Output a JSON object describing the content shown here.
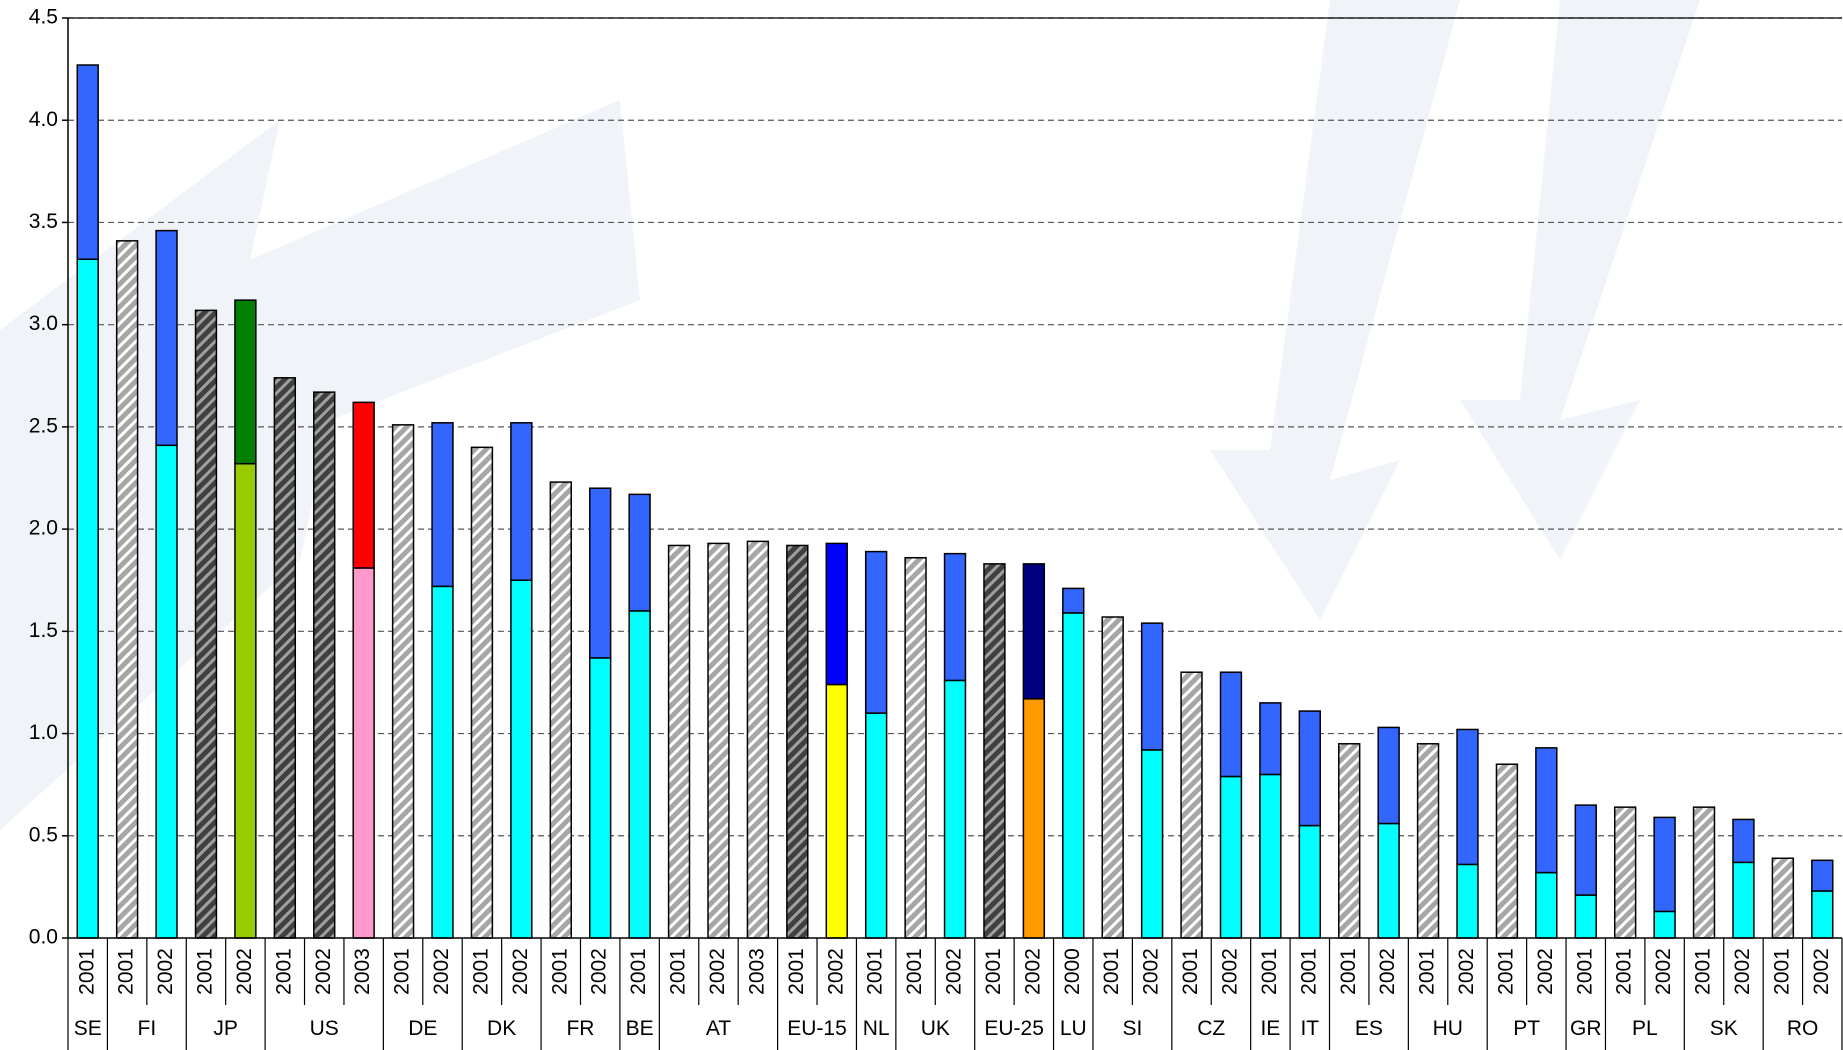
{
  "chart_data": {
    "type": "stacked-bar",
    "ylim": [
      0,
      4.5
    ],
    "yticks": [
      {
        "value": 0,
        "label": "0.0"
      },
      0.5,
      {
        "value": 1,
        "label": "1.0"
      },
      1.5,
      {
        "value": 2,
        "label": "2.0"
      },
      2.5,
      {
        "value": 3,
        "label": "3.0"
      },
      3.5,
      {
        "value": 4,
        "label": "4.0"
      },
      4.5
    ],
    "grid": true,
    "groups": [
      {
        "label": "SE",
        "bars": [
          {
            "year": "2001",
            "segments": [
              {
                "value": 3.32,
                "color": "#00ffff"
              },
              {
                "value": 0.95,
                "color": "#3366ff"
              }
            ]
          }
        ]
      },
      {
        "label": "FI",
        "bars": [
          {
            "year": "2001",
            "segments": [
              {
                "value": 3.41,
                "color": "#a6a6a6",
                "hatch_color": "#ffffff"
              }
            ]
          },
          {
            "year": "2002",
            "segments": [
              {
                "value": 2.41,
                "color": "#00ffff"
              },
              {
                "value": 1.05,
                "color": "#3366ff"
              }
            ]
          }
        ]
      },
      {
        "label": "JP",
        "bars": [
          {
            "year": "2001",
            "segments": [
              {
                "value": 3.07,
                "color": "#404040",
                "hatch_color": "#a0a0a0"
              }
            ]
          },
          {
            "year": "2002",
            "segments": [
              {
                "value": 2.32,
                "color": "#99cc00"
              },
              {
                "value": 0.8,
                "color": "#008000"
              }
            ]
          }
        ]
      },
      {
        "label": "US",
        "bars": [
          {
            "year": "2001",
            "segments": [
              {
                "value": 2.74,
                "color": "#404040",
                "hatch_color": "#a0a0a0"
              }
            ]
          },
          {
            "year": "2002",
            "segments": [
              {
                "value": 2.67,
                "color": "#404040",
                "hatch_color": "#a0a0a0"
              }
            ]
          },
          {
            "year": "2003",
            "segments": [
              {
                "value": 1.81,
                "color": "#ff99cc"
              },
              {
                "value": 0.81,
                "color": "#ff0000"
              }
            ]
          }
        ]
      },
      {
        "label": "DE",
        "bars": [
          {
            "year": "2001",
            "segments": [
              {
                "value": 2.51,
                "color": "#a6a6a6",
                "hatch_color": "#ffffff"
              }
            ]
          },
          {
            "year": "2002",
            "segments": [
              {
                "value": 1.72,
                "color": "#00ffff"
              },
              {
                "value": 0.8,
                "color": "#3366ff"
              }
            ]
          }
        ]
      },
      {
        "label": "DK",
        "bars": [
          {
            "year": "2001",
            "segments": [
              {
                "value": 2.4,
                "color": "#a6a6a6",
                "hatch_color": "#ffffff"
              }
            ]
          },
          {
            "year": "2002",
            "segments": [
              {
                "value": 1.75,
                "color": "#00ffff"
              },
              {
                "value": 0.77,
                "color": "#3366ff"
              }
            ]
          }
        ]
      },
      {
        "label": "FR",
        "bars": [
          {
            "year": "2001",
            "segments": [
              {
                "value": 2.23,
                "color": "#a6a6a6",
                "hatch_color": "#ffffff"
              }
            ]
          },
          {
            "year": "2002",
            "segments": [
              {
                "value": 1.37,
                "color": "#00ffff"
              },
              {
                "value": 0.83,
                "color": "#3366ff"
              }
            ]
          }
        ]
      },
      {
        "label": "BE",
        "bars": [
          {
            "year": "2001",
            "segments": [
              {
                "value": 1.6,
                "color": "#00ffff"
              },
              {
                "value": 0.57,
                "color": "#3366ff"
              }
            ]
          }
        ]
      },
      {
        "label": "AT",
        "bars": [
          {
            "year": "2001",
            "segments": [
              {
                "value": 1.92,
                "color": "#a6a6a6",
                "hatch_color": "#ffffff"
              }
            ]
          },
          {
            "year": "2002",
            "segments": [
              {
                "value": 1.93,
                "color": "#a6a6a6",
                "hatch_color": "#ffffff"
              }
            ]
          },
          {
            "year": "2003",
            "segments": [
              {
                "value": 1.94,
                "color": "#a6a6a6",
                "hatch_color": "#ffffff"
              }
            ]
          }
        ]
      },
      {
        "label": "EU-15",
        "bars": [
          {
            "year": "2001",
            "segments": [
              {
                "value": 1.92,
                "color": "#404040",
                "hatch_color": "#a0a0a0"
              }
            ]
          },
          {
            "year": "2002",
            "segments": [
              {
                "value": 1.24,
                "color": "#ffff00"
              },
              {
                "value": 0.69,
                "color": "#0000ff"
              }
            ]
          }
        ]
      },
      {
        "label": "NL",
        "bars": [
          {
            "year": "2001",
            "segments": [
              {
                "value": 1.1,
                "color": "#00ffff"
              },
              {
                "value": 0.79,
                "color": "#3366ff"
              }
            ]
          }
        ]
      },
      {
        "label": "UK",
        "bars": [
          {
            "year": "2001",
            "segments": [
              {
                "value": 1.86,
                "color": "#a6a6a6",
                "hatch_color": "#ffffff"
              }
            ]
          },
          {
            "year": "2002",
            "segments": [
              {
                "value": 1.26,
                "color": "#00ffff"
              },
              {
                "value": 0.62,
                "color": "#3366ff"
              }
            ]
          }
        ]
      },
      {
        "label": "EU-25",
        "bars": [
          {
            "year": "2001",
            "segments": [
              {
                "value": 1.83,
                "color": "#404040",
                "hatch_color": "#a0a0a0"
              }
            ]
          },
          {
            "year": "2002",
            "segments": [
              {
                "value": 1.17,
                "color": "#ff9900"
              },
              {
                "value": 0.66,
                "color": "#000080"
              }
            ]
          }
        ]
      },
      {
        "label": "LU",
        "bars": [
          {
            "year": "2000",
            "segments": [
              {
                "value": 1.59,
                "color": "#00ffff"
              },
              {
                "value": 0.12,
                "color": "#3366ff"
              }
            ]
          }
        ]
      },
      {
        "label": "SI",
        "bars": [
          {
            "year": "2001",
            "segments": [
              {
                "value": 1.57,
                "color": "#a6a6a6",
                "hatch_color": "#ffffff"
              }
            ]
          },
          {
            "year": "2002",
            "segments": [
              {
                "value": 0.92,
                "color": "#00ffff"
              },
              {
                "value": 0.62,
                "color": "#3366ff"
              }
            ]
          }
        ]
      },
      {
        "label": "CZ",
        "bars": [
          {
            "year": "2001",
            "segments": [
              {
                "value": 1.3,
                "color": "#a6a6a6",
                "hatch_color": "#ffffff"
              }
            ]
          },
          {
            "year": "2002",
            "segments": [
              {
                "value": 0.79,
                "color": "#00ffff"
              },
              {
                "value": 0.51,
                "color": "#3366ff"
              }
            ]
          }
        ]
      },
      {
        "label": "IE",
        "bars": [
          {
            "year": "2001",
            "segments": [
              {
                "value": 0.8,
                "color": "#00ffff"
              },
              {
                "value": 0.35,
                "color": "#3366ff"
              }
            ]
          }
        ]
      },
      {
        "label": "IT",
        "bars": [
          {
            "year": "2001",
            "segments": [
              {
                "value": 0.55,
                "color": "#00ffff"
              },
              {
                "value": 0.56,
                "color": "#3366ff"
              }
            ]
          }
        ]
      },
      {
        "label": "ES",
        "bars": [
          {
            "year": "2001",
            "segments": [
              {
                "value": 0.95,
                "color": "#a6a6a6",
                "hatch_color": "#ffffff"
              }
            ]
          },
          {
            "year": "2002",
            "segments": [
              {
                "value": 0.56,
                "color": "#00ffff"
              },
              {
                "value": 0.47,
                "color": "#3366ff"
              }
            ]
          }
        ]
      },
      {
        "label": "HU",
        "bars": [
          {
            "year": "2001",
            "segments": [
              {
                "value": 0.95,
                "color": "#a6a6a6",
                "hatch_color": "#ffffff"
              }
            ]
          },
          {
            "year": "2002",
            "segments": [
              {
                "value": 0.36,
                "color": "#00ffff"
              },
              {
                "value": 0.66,
                "color": "#3366ff"
              }
            ]
          }
        ]
      },
      {
        "label": "PT",
        "bars": [
          {
            "year": "2001",
            "segments": [
              {
                "value": 0.85,
                "color": "#a6a6a6",
                "hatch_color": "#ffffff"
              }
            ]
          },
          {
            "year": "2002",
            "segments": [
              {
                "value": 0.32,
                "color": "#00ffff"
              },
              {
                "value": 0.61,
                "color": "#3366ff"
              }
            ]
          }
        ]
      },
      {
        "label": "GR",
        "bars": [
          {
            "year": "2001",
            "segments": [
              {
                "value": 0.21,
                "color": "#00ffff"
              },
              {
                "value": 0.44,
                "color": "#3366ff"
              }
            ]
          }
        ]
      },
      {
        "label": "PL",
        "bars": [
          {
            "year": "2001",
            "segments": [
              {
                "value": 0.64,
                "color": "#a6a6a6",
                "hatch_color": "#ffffff"
              }
            ]
          },
          {
            "year": "2002",
            "segments": [
              {
                "value": 0.13,
                "color": "#00ffff"
              },
              {
                "value": 0.46,
                "color": "#3366ff"
              }
            ]
          }
        ]
      },
      {
        "label": "SK",
        "bars": [
          {
            "year": "2001",
            "segments": [
              {
                "value": 0.64,
                "color": "#a6a6a6",
                "hatch_color": "#ffffff"
              }
            ]
          },
          {
            "year": "2002",
            "segments": [
              {
                "value": 0.37,
                "color": "#00ffff"
              },
              {
                "value": 0.21,
                "color": "#3366ff"
              }
            ]
          }
        ]
      },
      {
        "label": "RO",
        "bars": [
          {
            "year": "2001",
            "segments": [
              {
                "value": 0.39,
                "color": "#a6a6a6",
                "hatch_color": "#ffffff"
              }
            ]
          },
          {
            "year": "2002",
            "segments": [
              {
                "value": 0.23,
                "color": "#00ffff"
              },
              {
                "value": 0.15,
                "color": "#3366ff"
              }
            ]
          }
        ]
      }
    ]
  }
}
